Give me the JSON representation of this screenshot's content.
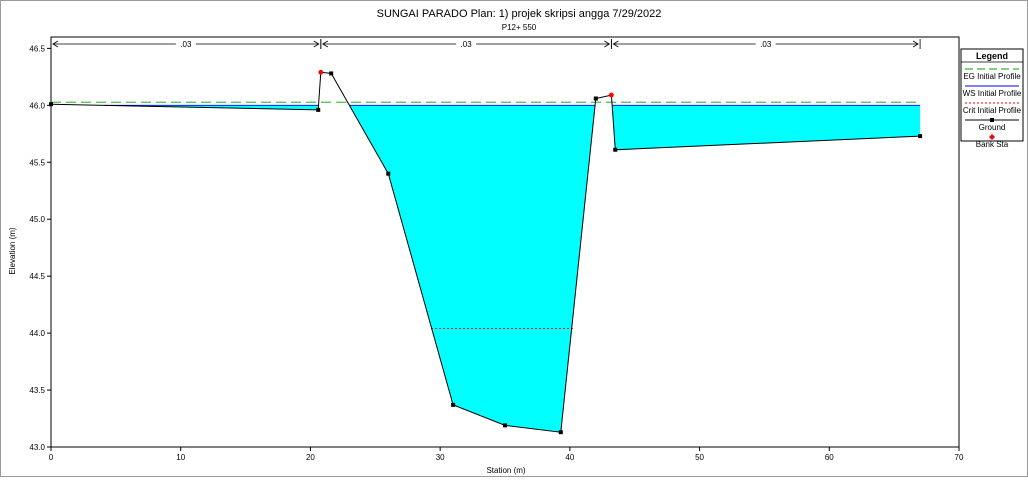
{
  "chart_data": {
    "type": "area",
    "title": "SUNGAI PARADO     Plan:     1) projek skripsi angga     7/29/2022",
    "subtitle": "P12+ 550",
    "xlabel": "Station (m)",
    "ylabel": "Elevation (m)",
    "xlim": [
      0,
      70
    ],
    "ylim": [
      43.0,
      46.6
    ],
    "x_ticks": [
      0,
      10,
      20,
      30,
      40,
      50,
      60,
      70
    ],
    "y_ticks": [
      43.0,
      43.5,
      44.0,
      44.5,
      45.0,
      45.5,
      46.0,
      46.5
    ],
    "legend": {
      "title": "Legend",
      "placement": "right",
      "entries": [
        {
          "label": "EG Initial Profile",
          "style": "dash",
          "color": "#00a000"
        },
        {
          "label": "WS Initial Profile",
          "style": "solid",
          "color": "#0000ff"
        },
        {
          "label": "Crit Initial Profile",
          "style": "dot",
          "color": "#ff0000"
        },
        {
          "label": "Ground",
          "style": "line-square",
          "color": "#000000"
        },
        {
          "label": "Bank Sta",
          "style": "diamond",
          "color": "#ff0000"
        }
      ]
    },
    "manning_n": [
      {
        "label": ".03",
        "from": 0,
        "to": 20.8
      },
      {
        "label": ".03",
        "from": 20.8,
        "to": 43.2
      },
      {
        "label": ".03",
        "from": 43.2,
        "to": 67
      }
    ],
    "ground": {
      "x": [
        0,
        20.6,
        20.8,
        21.6,
        26.0,
        31.0,
        35.0,
        39.3,
        42.0,
        43.2,
        43.5,
        67.0
      ],
      "y": [
        46.01,
        45.96,
        46.29,
        46.28,
        45.4,
        43.37,
        43.19,
        43.13,
        46.06,
        46.09,
        45.61,
        45.73
      ],
      "markers": [
        true,
        true,
        false,
        true,
        true,
        true,
        true,
        true,
        true,
        false,
        true,
        true
      ]
    },
    "bank_stations": [
      {
        "x": 20.8,
        "y": 46.29
      },
      {
        "x": 43.2,
        "y": 46.09
      }
    ],
    "ws_elevation": 46.0,
    "eg_elevation": 46.01,
    "crit_elevation": 44.04,
    "crit_extent": [
      29.3,
      40.4
    ],
    "colors": {
      "water": "#00ffff",
      "ground": "#000000",
      "eg": "#00a000",
      "ws": "#0000ff",
      "crit": "#ff0000",
      "bank": "#ff0000",
      "axis": "#000000"
    }
  }
}
